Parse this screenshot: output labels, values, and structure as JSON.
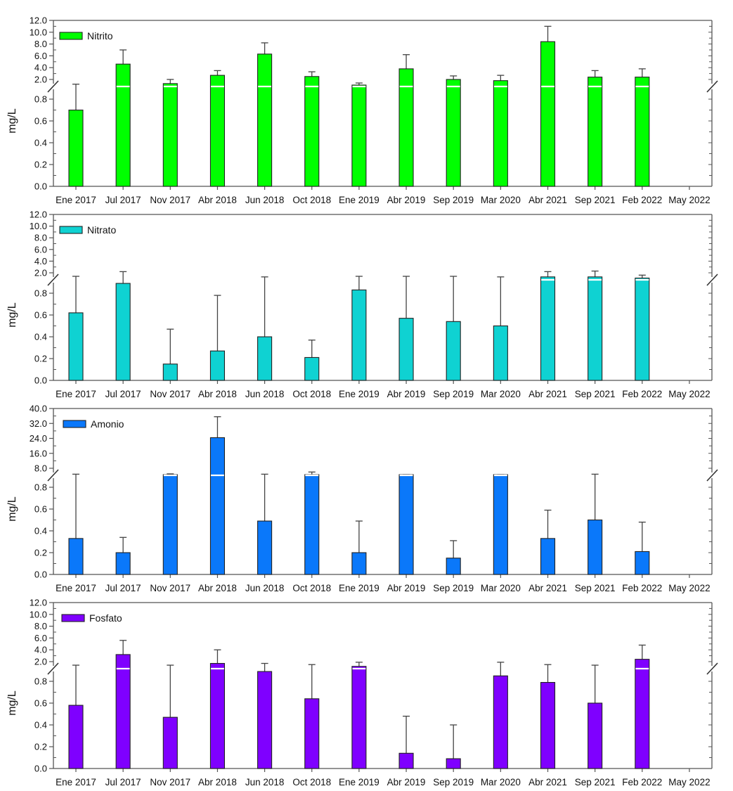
{
  "chart_data": [
    {
      "type": "bar",
      "panel": "Nitrito",
      "legend": "Nitrito",
      "color": "#00ff00",
      "ylabel": "mg/L",
      "xlabel": "",
      "axis_break": true,
      "lower_ylim": [
        0,
        0.92
      ],
      "upper_ylim": [
        0.8,
        12.0
      ],
      "lower_ticks": [
        "0.0",
        "0.2",
        "0.4",
        "0.6",
        "0.8"
      ],
      "upper_ticks": [
        "2.0",
        "4.0",
        "6.0",
        "8.0",
        "10.0",
        "12.0"
      ],
      "categories": [
        "Ene 2017",
        "Jul 2017",
        "Nov 2017",
        "Abr 2018",
        "Jun 2018",
        "Oct 2018",
        "Ene 2019",
        "Abr 2019",
        "Sep 2019",
        "Mar 2020",
        "Abr 2021",
        "Sep 2021",
        "Feb 2022",
        "May 2022"
      ],
      "values": [
        0.7,
        4.6,
        1.3,
        2.7,
        6.3,
        2.5,
        1.05,
        3.8,
        2.0,
        1.8,
        8.4,
        2.4,
        2.4,
        null
      ],
      "error_upper": [
        1.2,
        7.0,
        2.0,
        3.5,
        8.2,
        3.3,
        1.4,
        6.2,
        2.6,
        2.7,
        11.0,
        3.5,
        3.8,
        null
      ],
      "legend_position": "top-left"
    },
    {
      "type": "bar",
      "panel": "Nitrato",
      "legend": "Nitrato",
      "color": "#0fd2d2",
      "ylabel": "mg/L",
      "xlabel": "",
      "axis_break": true,
      "lower_ylim": [
        0,
        0.92
      ],
      "upper_ylim": [
        0.8,
        12.0
      ],
      "lower_ticks": [
        "0.0",
        "0.2",
        "0.4",
        "0.6",
        "0.8"
      ],
      "upper_ticks": [
        "2.0",
        "4.0",
        "6.0",
        "8.0",
        "10.0",
        "12.0"
      ],
      "categories": [
        "Ene 2017",
        "Jul 2017",
        "Nov 2017",
        "Abr 2018",
        "Jun 2018",
        "Oct 2018",
        "Ene 2019",
        "Abr 2019",
        "Sep 2019",
        "Mar 2020",
        "Abr 2021",
        "Sep 2021",
        "Feb 2022",
        "May 2022"
      ],
      "values": [
        0.62,
        0.89,
        0.15,
        0.27,
        0.4,
        0.21,
        0.83,
        0.57,
        0.54,
        0.5,
        1.3,
        1.3,
        1.1,
        null
      ],
      "error_upper": [
        1.4,
        2.2,
        0.47,
        0.78,
        1.3,
        0.37,
        1.4,
        1.4,
        1.4,
        1.3,
        2.2,
        2.3,
        1.6,
        null
      ],
      "legend_position": "top-left"
    },
    {
      "type": "bar",
      "panel": "Amonio",
      "legend": "Amonio",
      "color": "#0a78fa",
      "ylabel": "mg/L",
      "xlabel": "",
      "axis_break": true,
      "lower_ylim": [
        0,
        0.92
      ],
      "upper_ylim": [
        0.0,
        40.0
      ],
      "lower_ticks": [
        "0.0",
        "0.2",
        "0.4",
        "0.6",
        "0.8"
      ],
      "upper_ticks": [
        "8.0",
        "16.0",
        "24.0",
        "32.0",
        "40.0"
      ],
      "categories": [
        "Ene 2017",
        "Jul 2017",
        "Nov 2017",
        "Abr 2018",
        "Jun 2018",
        "Oct 2018",
        "Ene 2019",
        "Abr 2019",
        "Sep 2019",
        "Mar 2020",
        "Abr 2021",
        "Sep 2021",
        "Feb 2022",
        "May 2022"
      ],
      "values": [
        0.33,
        0.2,
        3.0,
        24.4,
        0.49,
        3.5,
        0.2,
        1.5,
        0.15,
        1.0,
        0.33,
        0.5,
        0.21,
        null
      ],
      "error_upper": [
        0.92,
        0.34,
        5.0,
        35.6,
        0.92,
        6.0,
        0.49,
        2.6,
        0.31,
        2.0,
        0.59,
        0.92,
        0.48,
        null
      ],
      "legend_position": "top-left"
    },
    {
      "type": "bar",
      "panel": "Fosfato",
      "legend": "Fosfato",
      "color": "#7f00ff",
      "ylabel": "mg/L",
      "xlabel": "",
      "axis_break": true,
      "lower_ylim": [
        0,
        0.92
      ],
      "upper_ylim": [
        0.8,
        12.0
      ],
      "lower_ticks": [
        "0.0",
        "0.2",
        "0.4",
        "0.6",
        "0.8"
      ],
      "upper_ticks": [
        "2.0",
        "4.0",
        "6.0",
        "8.0",
        "10.0",
        "12.0"
      ],
      "categories": [
        "Ene 2017",
        "Jul 2017",
        "Nov 2017",
        "Abr 2018",
        "Jun 2018",
        "Oct 2018",
        "Ene 2019",
        "Abr 2019",
        "Sep 2019",
        "Mar 2020",
        "Abr 2021",
        "Sep 2021",
        "Feb 2022",
        "May 2022"
      ],
      "values": [
        0.58,
        3.2,
        0.47,
        1.7,
        0.89,
        0.64,
        1.2,
        0.14,
        0.09,
        0.85,
        0.79,
        0.6,
        2.4,
        null
      ],
      "error_upper": [
        1.4,
        5.6,
        1.4,
        4.0,
        1.7,
        1.5,
        1.9,
        0.48,
        0.4,
        1.9,
        1.5,
        1.4,
        4.8,
        null
      ],
      "legend_position": "top-left"
    }
  ]
}
